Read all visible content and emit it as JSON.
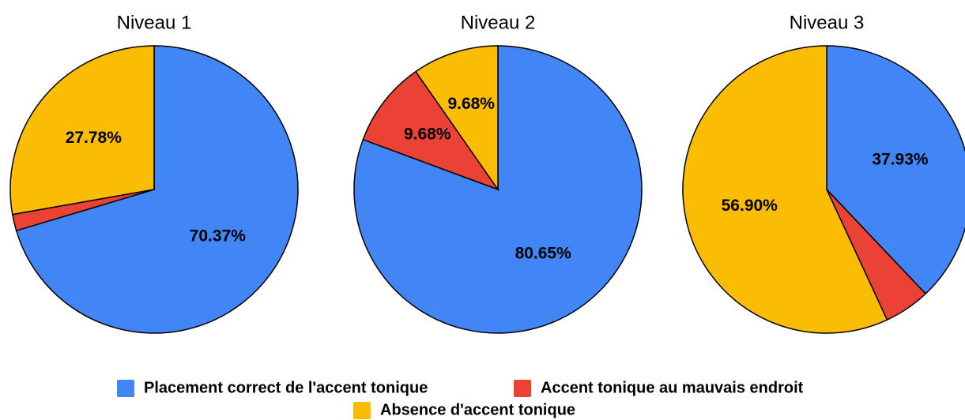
{
  "chart_data": [
    {
      "type": "pie",
      "title": "Niveau 1",
      "values": [
        70.37,
        1.85,
        27.78
      ],
      "value_labels": [
        "70.37%",
        null,
        "27.78%"
      ]
    },
    {
      "type": "pie",
      "title": "Niveau 2",
      "values": [
        80.65,
        9.68,
        9.68
      ],
      "value_labels": [
        "80.65%",
        "9.68%",
        "9.68%"
      ]
    },
    {
      "type": "pie",
      "title": "Niveau 3",
      "values": [
        37.93,
        5.17,
        56.9
      ],
      "value_labels": [
        "37.93%",
        null,
        "56.90%"
      ]
    }
  ],
  "legend": {
    "labels": [
      "Placement correct de l'accent tonique",
      "Accent tonique au mauvais endroit",
      "Absence d'accent tonique"
    ],
    "colors": [
      "#4285f4",
      "#ea4335",
      "#fbbc04"
    ]
  }
}
